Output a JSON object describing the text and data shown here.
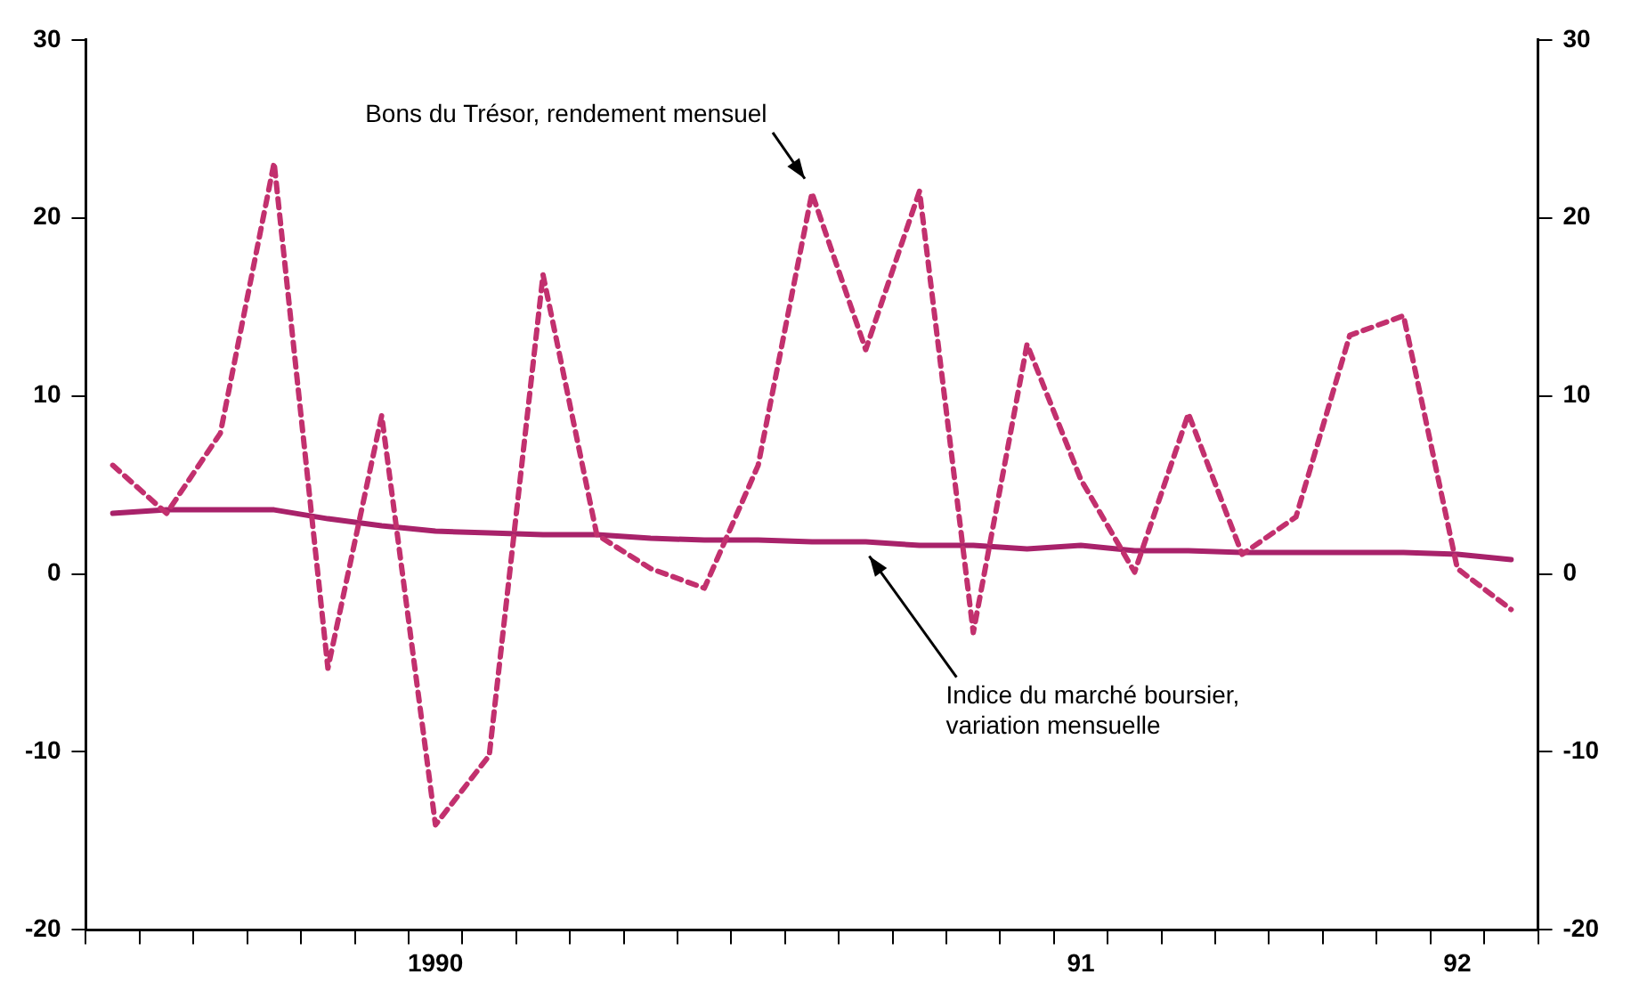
{
  "chart_data": {
    "type": "line",
    "categories": [
      null,
      null,
      null,
      null,
      null,
      null,
      "1990",
      null,
      null,
      null,
      null,
      null,
      null,
      null,
      null,
      null,
      null,
      null,
      "91",
      null,
      null,
      null,
      null,
      null,
      null,
      "92",
      null
    ],
    "series": [
      {
        "name": "Bons du Trésor, rendement mensuel",
        "color": "#c2306e",
        "line_style": "dashed",
        "values": [
          6.1,
          3.4,
          7.9,
          23.1,
          -5.3,
          8.9,
          -14.1,
          -10.2,
          16.8,
          2.2,
          0.3,
          -0.8,
          6.1,
          21.4,
          12.6,
          21.5,
          -3.3,
          12.9,
          5.3,
          0.1,
          9.0,
          1.1,
          3.2,
          13.4,
          14.5,
          0.3,
          -2.0
        ]
      },
      {
        "name": "Indice du marché boursier, variation mensuelle",
        "color": "#a8226a",
        "line_style": "solid",
        "values": [
          3.4,
          3.6,
          3.6,
          3.6,
          3.1,
          2.7,
          2.4,
          2.3,
          2.2,
          2.2,
          2.0,
          1.9,
          1.9,
          1.8,
          1.8,
          1.6,
          1.6,
          1.4,
          1.6,
          1.3,
          1.3,
          1.2,
          1.2,
          1.2,
          1.2,
          1.1,
          0.8
        ]
      }
    ],
    "ylim": [
      -20,
      30
    ],
    "yticks": [
      -20,
      -10,
      0,
      10,
      20,
      30
    ],
    "y2lim": [
      -20,
      30
    ],
    "y2ticks": [
      -20,
      -10,
      0,
      10,
      20,
      30
    ],
    "grid": false,
    "legend": false,
    "marker": "none"
  }
}
